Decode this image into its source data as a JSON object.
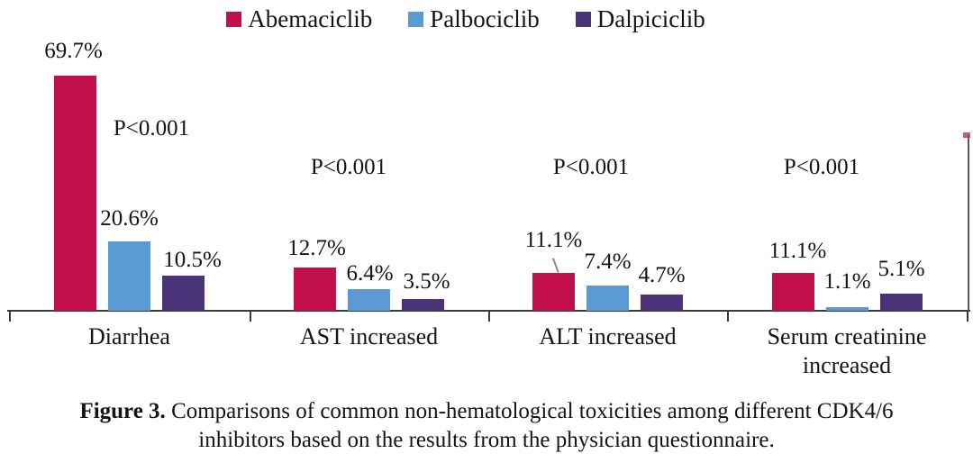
{
  "legend": {
    "items": [
      {
        "label": "Abemaciclib",
        "color": "#c2114a"
      },
      {
        "label": "Palbociclib",
        "color": "#5b9bd5"
      },
      {
        "label": "Dalpiciclib",
        "color": "#4a3477"
      }
    ]
  },
  "chart_data": {
    "type": "bar",
    "categories": [
      "Diarrhea",
      "AST increased",
      "ALT increased",
      "Serum creatinine increased"
    ],
    "series": [
      {
        "name": "Abemaciclib",
        "color": "#c2114a",
        "values": [
          69.7,
          12.7,
          11.1,
          11.1
        ]
      },
      {
        "name": "Palbociclib",
        "color": "#5b9bd5",
        "values": [
          20.6,
          6.4,
          7.4,
          1.1
        ]
      },
      {
        "name": "Dalpiciclib",
        "color": "#4a3477",
        "values": [
          10.5,
          3.5,
          4.7,
          5.1
        ]
      }
    ],
    "value_suffix": "%",
    "p_labels": [
      "P<0.001",
      "P<0.001",
      "P<0.001",
      "P<0.001"
    ],
    "ylabel": "",
    "xlabel": "",
    "ylim": [
      0,
      75
    ],
    "grid": false,
    "legend_position": "top",
    "value_labels_shown": true
  },
  "caption": {
    "bold": "Figure 3.",
    "line1": " Comparisons of common non-hematological toxicities among different CDK4/6",
    "line2": "inhibitors based on the results from the physician questionnaire."
  }
}
